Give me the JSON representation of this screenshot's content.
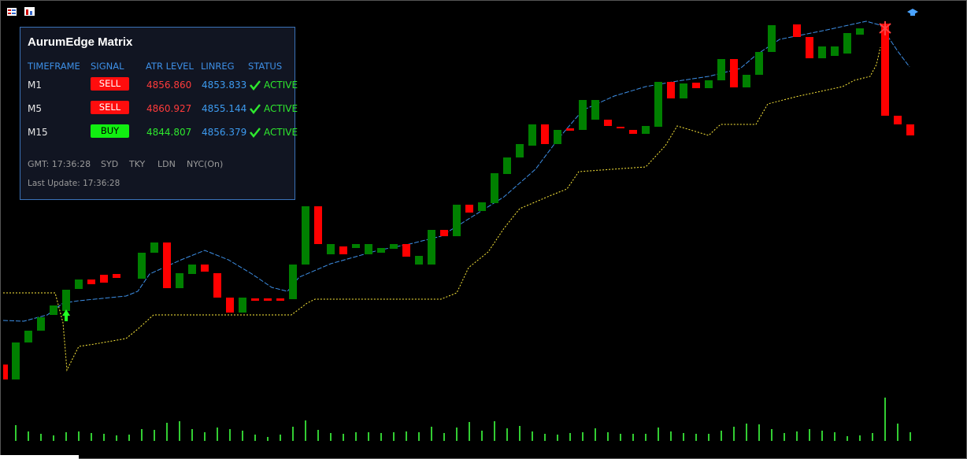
{
  "panel": {
    "title": "AurumEdge Matrix",
    "columns": [
      "TIMEFRAME",
      "SIGNAL",
      "ATR LEVEL",
      "LINREG",
      "STATUS"
    ],
    "rows": [
      {
        "timeframe": "M1",
        "signal": "SELL",
        "atr_level": "4856.860",
        "linreg": "4853.833",
        "status": "ACTIVE"
      },
      {
        "timeframe": "M5",
        "signal": "SELL",
        "atr_level": "4860.927",
        "linreg": "4855.144",
        "status": "ACTIVE"
      },
      {
        "timeframe": "M15",
        "signal": "BUY",
        "atr_level": "4844.807",
        "linreg": "4856.379",
        "status": "ACTIVE"
      }
    ],
    "gmt": "GMT: 17:36:28",
    "sessions": [
      "SYD",
      "TKY",
      "LDN",
      "NYC(On)"
    ],
    "last_update": "Last Update: 17:36:28"
  }
}
